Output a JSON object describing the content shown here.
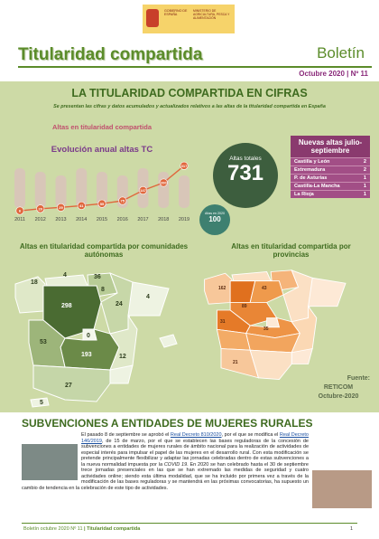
{
  "header": {
    "logo_line1": "GOBIERNO DE ESPAÑA",
    "logo_line2": "MINISTERIO DE AGRICULTURA, PESCA Y ALIMENTACIÓN",
    "title": "Titularidad compartida",
    "bulletin": "Boletín",
    "issue": "Octubre 2020 | Nº 11"
  },
  "stats": {
    "title": "LA TITULARIDAD COMPARTIDA EN CIFRAS",
    "subtitle": "Se presentan las cifras y datos acumulados y actualizados relativos a las altas de la titularidad compartida en España",
    "altas_heading": "Altas en titularidad compartida",
    "total_label": "Altas totales",
    "total_value": 731,
    "year_label": "Altas en 2020",
    "year_value": 100,
    "new_title": "Nuevas altas julio-septiembre",
    "new_rows": [
      {
        "region": "Castilla y León",
        "value": 2
      },
      {
        "region": "Extremadura",
        "value": 2
      },
      {
        "region": "P. de Asturias",
        "value": 1
      },
      {
        "region": "Castilla-La Mancha",
        "value": 1
      },
      {
        "region": "La Rioja",
        "value": 1
      }
    ]
  },
  "chart_data": {
    "type": "line",
    "title": "Evolución anual altas TC",
    "categories": [
      "2011",
      "2012",
      "2013",
      "2014",
      "2015",
      "2016",
      "2017",
      "2018",
      "2019"
    ],
    "values": [
      6,
      20,
      29,
      41,
      55,
      75,
      147,
      200,
      317
    ],
    "color": "#e0663c",
    "ylim": [
      0,
      350
    ]
  },
  "maps": {
    "ccaa_title": "Altas en titularidad compartida por comunidades autónomas",
    "ccaa_values": [
      18,
      4,
      36,
      8,
      298,
      24,
      4,
      0,
      53,
      193,
      12,
      27,
      5
    ],
    "prov_title": "Altas en titularidad compartida por provincias",
    "prov_values": [
      162,
      43,
      31,
      89,
      35,
      21
    ],
    "source_label": "Fuente:",
    "source": "RETICOM",
    "source_date": "Octubre-2020"
  },
  "article": {
    "title": "SUBVENCIONES A ENTIDADES DE MUJERES RURALES",
    "p1": "El pasado 8 de septiembre se aprobó el ",
    "link1": "Real Decreto 810/2020",
    "p2": ", por el que se modifica el ",
    "link2": "Real Decreto 146/2019",
    "p3": ", de 15 de marzo, por el que se establecen las bases reguladoras de la concesión de subvenciones a entidades de mujeres rurales de ámbito nacional para la realización de actividades de especial interés para impulsar el papel de las mujeres en el desarrollo rural. Con esta modificación se pretende principalmente flexibilizar y adaptar las jornadas celebradas dentro de estas subvenciones a la nueva normalidad impuesta por ",
    "covid": "la COVID 19",
    "p4": ". En 2020 se han celebrado hasta el 30 de septiembre trece jornadas presenciales en las que se han extremado las medidas de seguridad y cuatro actividades online; siendo esta última modalidad, que se ha incluido por primera vez a través de la modificación de las bases reguladoras y se mantendrá en las próximas convocatorias, ha supuesto un cambio de tendencia en la celebración de este tipo de actividades."
  },
  "footer": {
    "left": "Boletín octubre 2020 Nº 11 ",
    "right": "| Titularidad compartida",
    "page": 1
  }
}
